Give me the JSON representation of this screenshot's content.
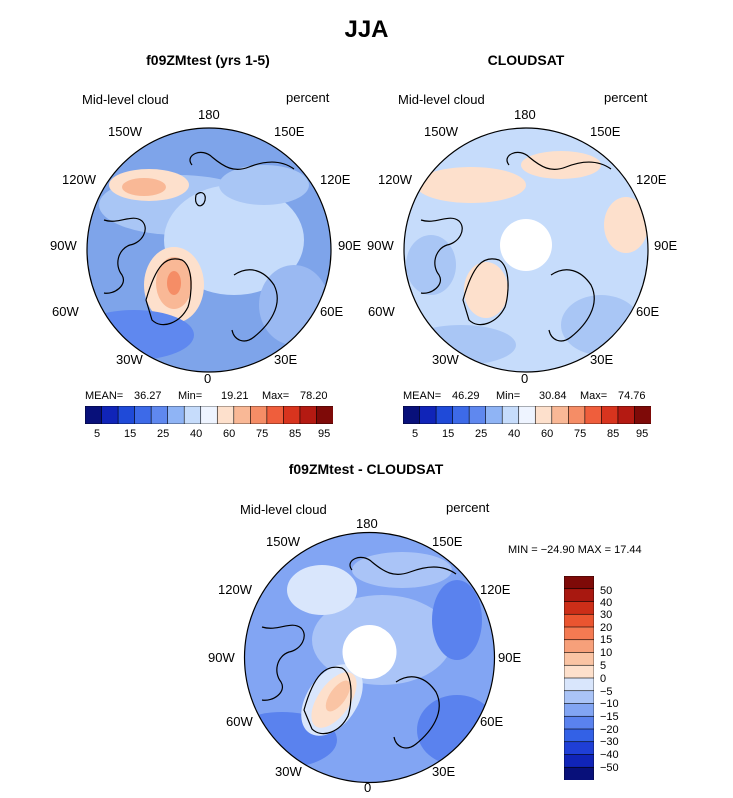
{
  "figure": {
    "title": "JJA"
  },
  "colors": {
    "bg_base": "#8fb4ef",
    "land": "#000000",
    "scale_abs": [
      "#08107a",
      "#1024b8",
      "#1f4ad8",
      "#3d6ae8",
      "#5f88ef",
      "#8fb4f5",
      "#c6dcfb",
      "#eef4ff",
      "#fde0cc",
      "#f9b896",
      "#f58d66",
      "#ef5e3c",
      "#d8341e",
      "#b41a12",
      "#7e0a08"
    ],
    "scale_diff": [
      "#08107a",
      "#1024b8",
      "#1f3fd6",
      "#3361e6",
      "#5a82ee",
      "#82a5f3",
      "#aac4f7",
      "#d9e6fc",
      "#fde0cc",
      "#fac4a4",
      "#f7a07a",
      "#f47a52",
      "#ea5530",
      "#cc2e18",
      "#a81810",
      "#7e0a08"
    ]
  },
  "chart_data": [
    {
      "type": "heatmap",
      "projection": "polar-stereographic",
      "title": "f09ZMtest (yrs 1-5)",
      "variable": "Mid-level cloud",
      "units": "percent",
      "stats": {
        "mean_label": "MEAN=",
        "mean": "36.27",
        "min_label": "Min=",
        "min": "19.21",
        "max_label": "Max=",
        "max": "78.20"
      },
      "lon_labels": {
        "n": "180",
        "ne": "150E",
        "ene": "120E",
        "e": "90E",
        "ese": "60E",
        "se": "30E",
        "s": "0",
        "sw": "30W",
        "wsw": "60W",
        "w": "90W",
        "wnw": "120W",
        "nw": "150W"
      },
      "colorbar_ticks": [
        "5",
        "15",
        "25",
        "40",
        "60",
        "75",
        "85",
        "95"
      ],
      "has_center_gap": false
    },
    {
      "type": "heatmap",
      "projection": "polar-stereographic",
      "title": "CLOUDSAT",
      "variable": "Mid-level cloud",
      "units": "percent",
      "stats": {
        "mean_label": "MEAN=",
        "mean": "46.29",
        "min_label": "Min=",
        "min": "30.84",
        "max_label": "Max=",
        "max": "74.76"
      },
      "lon_labels": {
        "n": "180",
        "ne": "150E",
        "ene": "120E",
        "e": "90E",
        "ese": "60E",
        "se": "30E",
        "s": "0",
        "sw": "30W",
        "wsw": "60W",
        "w": "90W",
        "wnw": "120W",
        "nw": "150W"
      },
      "colorbar_ticks": [
        "5",
        "15",
        "25",
        "40",
        "60",
        "75",
        "85",
        "95"
      ],
      "has_center_gap": true
    },
    {
      "type": "heatmap",
      "projection": "polar-stereographic",
      "title": "f09ZMtest - CLOUDSAT",
      "variable": "Mid-level cloud",
      "units": "percent",
      "stats_line": "MIN = −24.90 MAX =   17.44",
      "lon_labels": {
        "n": "180",
        "ne": "150E",
        "ene": "120E",
        "e": "90E",
        "ese": "60E",
        "se": "30E",
        "s": "0",
        "sw": "30W",
        "wsw": "60W",
        "w": "90W",
        "wnw": "120W",
        "nw": "150W"
      },
      "colorbar_ticks": [
        "50",
        "40",
        "30",
        "20",
        "15",
        "10",
        "5",
        "0",
        "−5",
        "−10",
        "−15",
        "−20",
        "−30",
        "−40",
        "−50"
      ],
      "has_center_gap": true
    }
  ]
}
